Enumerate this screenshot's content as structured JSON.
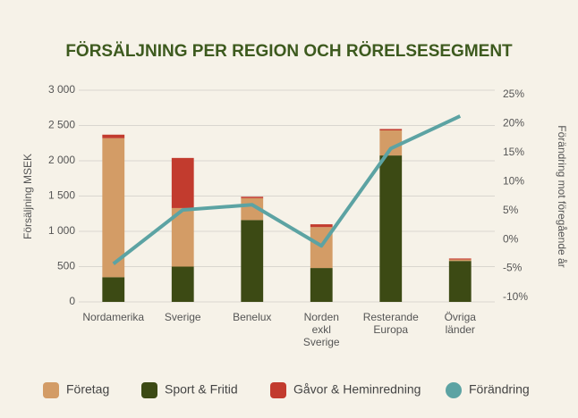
{
  "chart_data": {
    "type": "bar",
    "title": "FÖRSÄLJNING PER REGION OCH RÖRELSESEGMENT",
    "y_label": "Försäljning MSEK",
    "y2_label": "Förändring mot föregående år",
    "categories": [
      "Nordamerika",
      "Sverige",
      "Benelux",
      "Norden exkl Sverige",
      "Resterande Europa",
      "Övriga länder"
    ],
    "stacked": true,
    "grid": true,
    "legend": "bottom",
    "series": [
      {
        "name": "Företag",
        "color": "#d39c66",
        "values": [
          1970,
          830,
          310,
          580,
          355,
          20
        ]
      },
      {
        "name": "Sport & Fritid",
        "color": "#3c4a14",
        "values": [
          350,
          500,
          1160,
          480,
          2075,
          580
        ]
      },
      {
        "name": "Gåvor & Heminredning",
        "color": "#c23b2e",
        "values": [
          50,
          710,
          20,
          40,
          20,
          15
        ]
      },
      {
        "name": "Förändring",
        "color": "#5ca3a3",
        "type": "line",
        "axis": "y2",
        "values": [
          -4.2,
          5.1,
          6.0,
          -1.1,
          15.7,
          21.3
        ]
      }
    ],
    "ylim": [
      0,
      3000
    ],
    "yticks": [
      0,
      500,
      {
        "value": 1000,
        "label": "1 000"
      },
      {
        "value": 1500,
        "label": "1 500"
      },
      {
        "value": 2000,
        "label": "2 000"
      },
      {
        "value": 2500,
        "label": "2 500"
      },
      {
        "value": 3000,
        "label": "3 000"
      }
    ],
    "y2lim": [
      -10,
      25
    ],
    "y2ticks": [
      {
        "value": -10,
        "label": "-10%"
      },
      {
        "value": -5,
        "label": "-5%"
      },
      {
        "value": 0,
        "label": "0%"
      },
      {
        "value": 5,
        "label": "5%"
      },
      {
        "value": 10,
        "label": "10%"
      },
      {
        "value": 15,
        "label": "15%"
      },
      {
        "value": 20,
        "label": "20%"
      },
      {
        "value": 25,
        "label": "25%"
      }
    ]
  }
}
